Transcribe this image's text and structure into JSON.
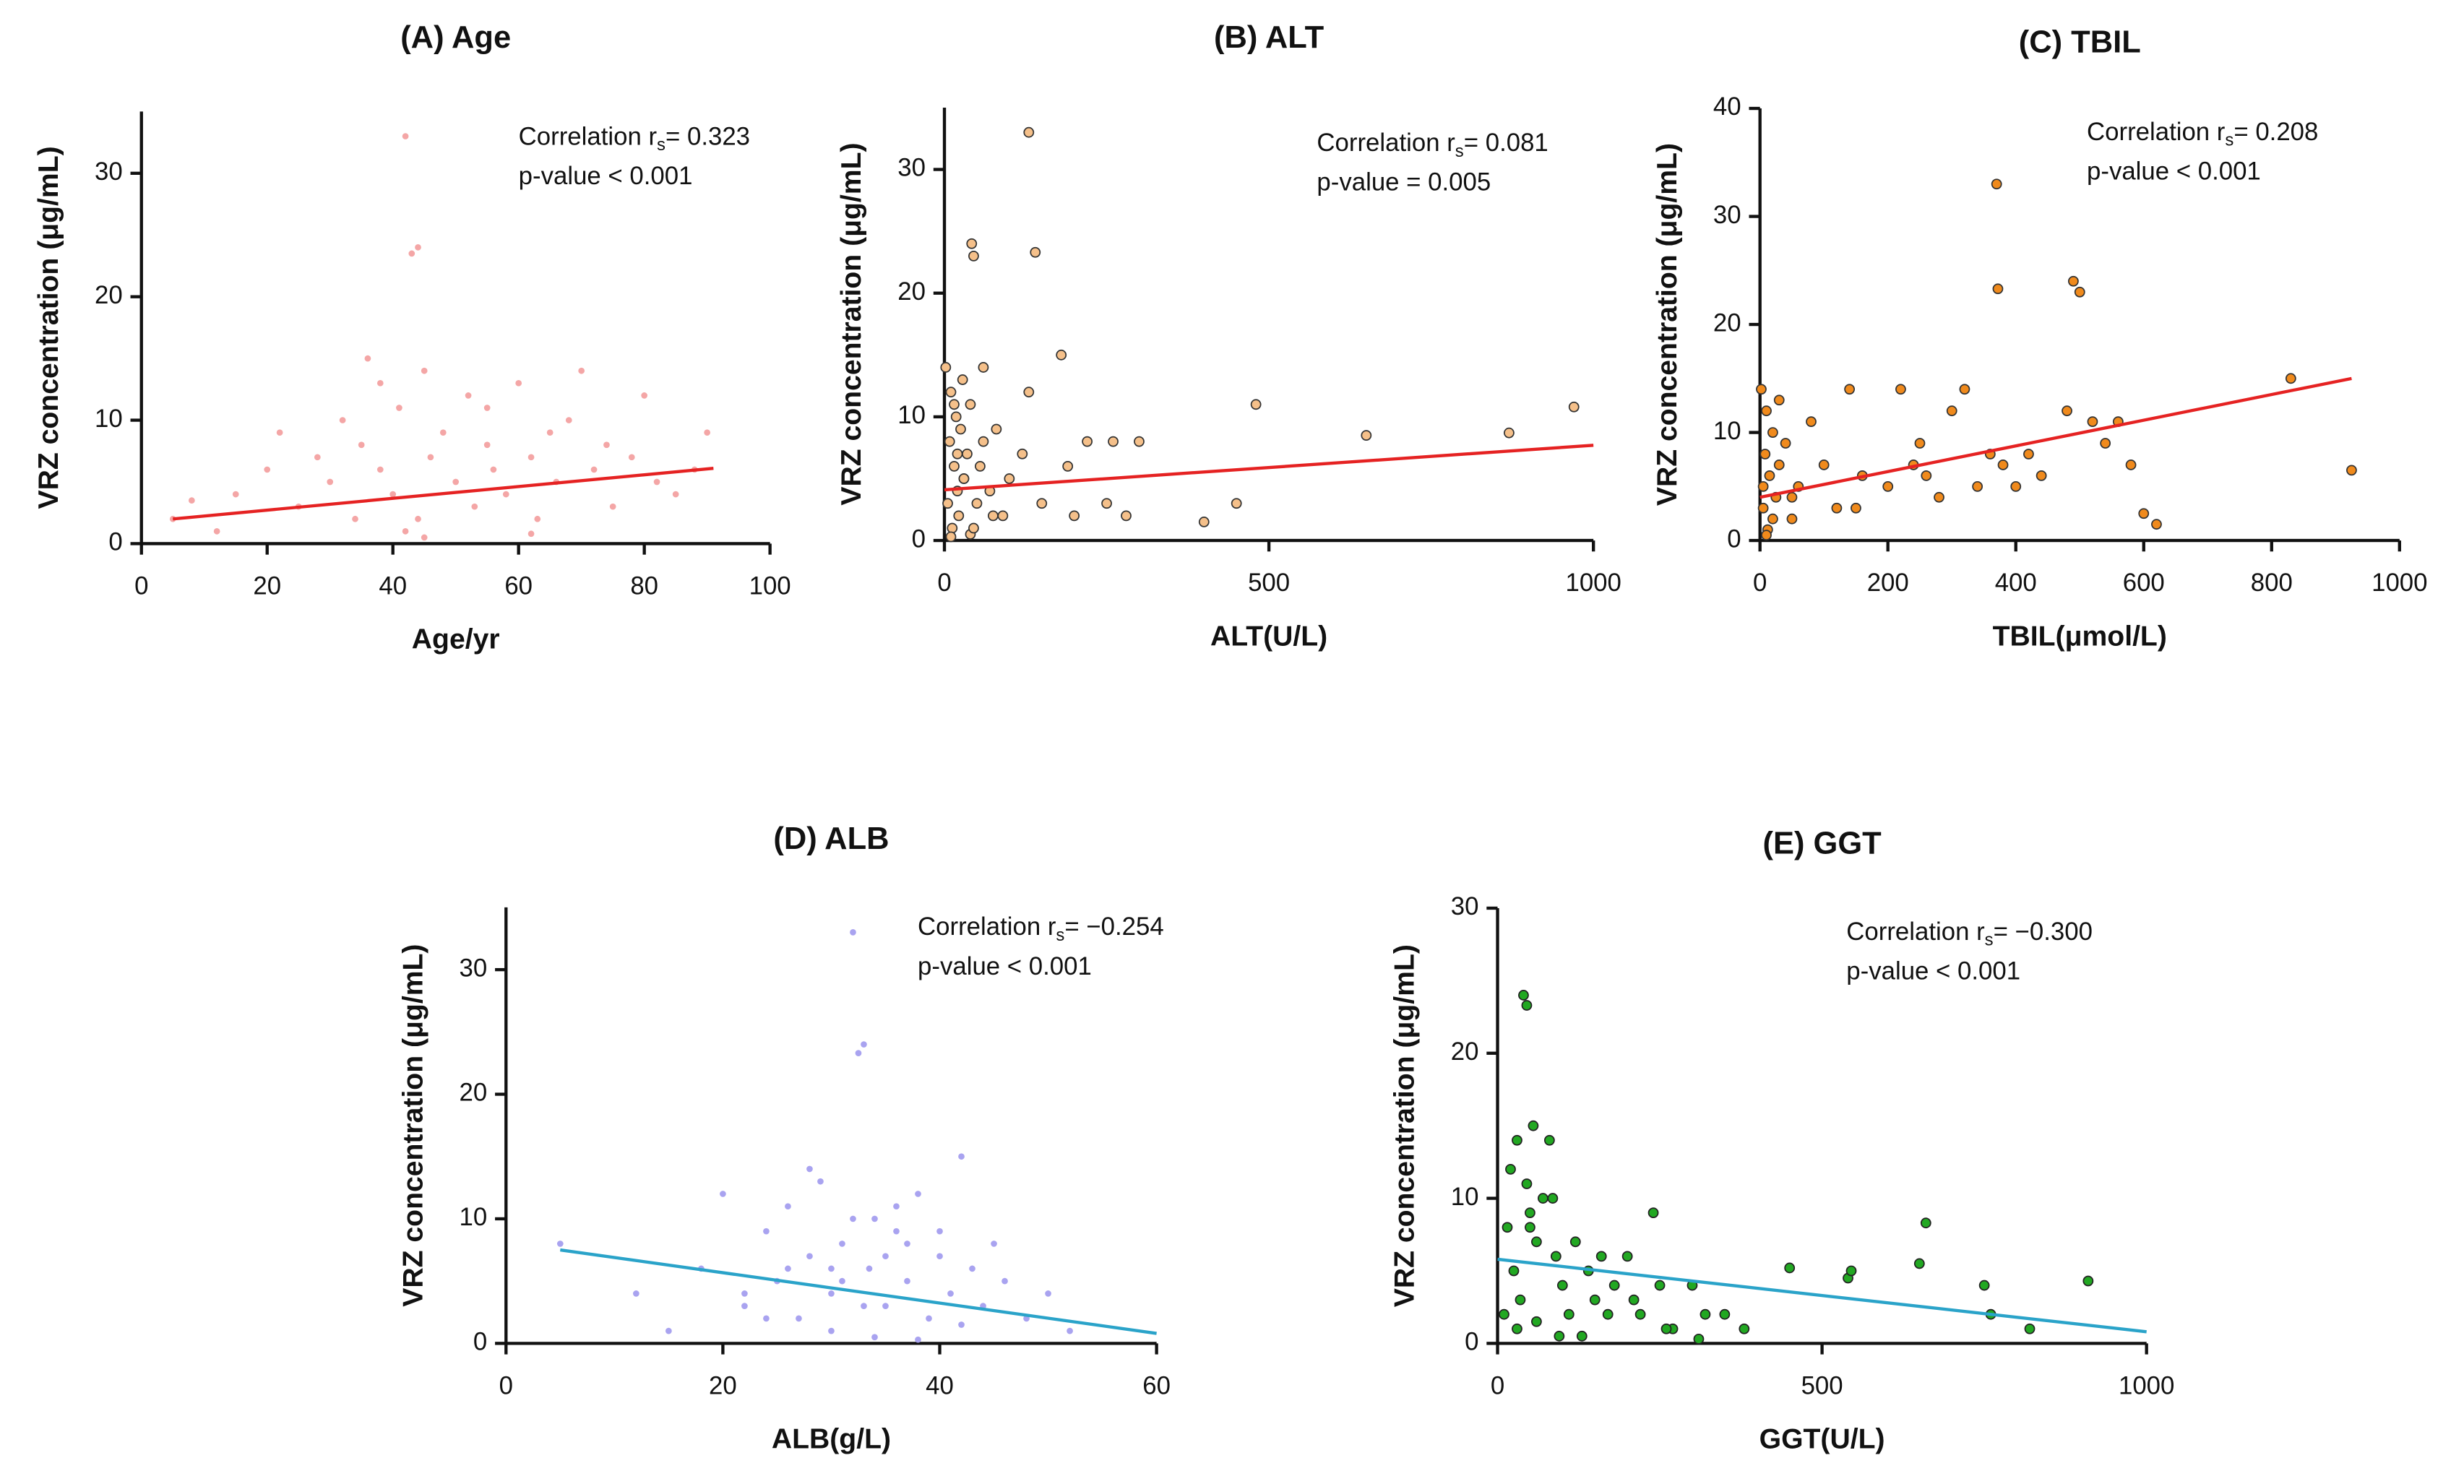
{
  "chart_data": [
    {
      "type": "scatter",
      "title": "(A) Age",
      "x_label": "Age/yr",
      "y_label": "VRZ concentration (μg/mL)",
      "corr_label": "Correlation r",
      "corr_sub": "s",
      "corr_value": "= 0.323",
      "p_text": "p-value < 0.001",
      "color": "#f4a6a6",
      "stroke": "none",
      "fit_color": "#e52222",
      "xlim": [
        0,
        100
      ],
      "ylim": [
        0,
        35
      ],
      "xticks": [
        0,
        20,
        40,
        60,
        80,
        100
      ],
      "yticks": [
        0,
        10,
        20,
        30
      ],
      "x": [
        5,
        8,
        12,
        15,
        20,
        22,
        25,
        28,
        30,
        32,
        34,
        35,
        36,
        38,
        40,
        41,
        42,
        43,
        44,
        45,
        46,
        48,
        50,
        52,
        53,
        55,
        56,
        58,
        60,
        62,
        63,
        65,
        66,
        68,
        70,
        72,
        74,
        75,
        78,
        80,
        82,
        85,
        88,
        90,
        42,
        44,
        45,
        38,
        55,
        62
      ],
      "values": [
        2,
        3.5,
        1,
        4,
        6,
        9,
        3,
        7,
        5,
        10,
        2,
        8,
        15,
        6,
        4,
        11,
        33,
        23.5,
        24,
        14,
        7,
        9,
        5,
        12,
        3,
        8,
        6,
        4,
        13,
        7,
        2,
        9,
        5,
        10,
        14,
        6,
        8,
        3,
        7,
        12,
        5,
        4,
        6,
        9,
        1,
        2,
        0.5,
        13,
        11,
        0.8
      ],
      "fit": {
        "x": [
          5,
          91
        ],
        "y": [
          2,
          6.1
        ]
      }
    },
    {
      "type": "scatter",
      "title": "(B) ALT",
      "x_label": "ALT(U/L)",
      "y_label": "VRZ concentration (μg/mL)",
      "corr_label": "Correlation r",
      "corr_sub": "s",
      "corr_value": "= 0.081",
      "p_text": "p-value = 0.005",
      "color": "#f5c08a",
      "stroke": "#333",
      "fit_color": "#e52222",
      "xlim": [
        0,
        1000
      ],
      "ylim": [
        0,
        35
      ],
      "xticks": [
        0,
        500,
        1000
      ],
      "yticks": [
        0,
        10,
        20,
        30
      ],
      "x": [
        2,
        5,
        8,
        10,
        12,
        15,
        18,
        20,
        22,
        25,
        28,
        30,
        35,
        40,
        42,
        45,
        50,
        55,
        60,
        70,
        80,
        90,
        100,
        120,
        130,
        140,
        150,
        180,
        190,
        200,
        220,
        250,
        260,
        280,
        300,
        400,
        450,
        480,
        650,
        870,
        970,
        40,
        45,
        130,
        60,
        20,
        30,
        10,
        15,
        75
      ],
      "values": [
        14,
        3,
        8,
        12,
        1,
        6,
        10,
        4,
        2,
        9,
        13,
        5,
        7,
        11,
        24,
        23,
        3,
        6,
        8,
        4,
        9,
        2,
        5,
        7,
        33,
        23.3,
        3,
        15,
        6,
        2,
        8,
        3,
        8,
        2,
        8,
        1.5,
        3,
        11,
        8.5,
        8.7,
        10.8,
        0.5,
        1,
        12,
        14,
        7,
        5,
        0.3,
        11,
        2
      ],
      "fit": {
        "x": [
          0,
          1000
        ],
        "y": [
          4.1,
          7.7
        ]
      }
    },
    {
      "type": "scatter",
      "title": "(C) TBIL",
      "x_label": "TBIL(μmol/L)",
      "y_label": "VRZ concentration (μg/mL)",
      "corr_label": "Correlation r",
      "corr_sub": "s",
      "corr_value": "= 0.208",
      "p_text": "p-value < 0.001",
      "color": "#f08a1c",
      "stroke": "#333",
      "fit_color": "#e52222",
      "xlim": [
        0,
        1000
      ],
      "ylim": [
        0,
        40
      ],
      "xticks": [
        0,
        200,
        400,
        600,
        800,
        1000
      ],
      "yticks": [
        0,
        10,
        20,
        30,
        40
      ],
      "x": [
        2,
        5,
        8,
        10,
        12,
        15,
        20,
        25,
        30,
        40,
        50,
        60,
        80,
        100,
        120,
        140,
        160,
        200,
        220,
        240,
        260,
        280,
        300,
        320,
        340,
        360,
        370,
        372,
        380,
        400,
        420,
        440,
        480,
        490,
        500,
        520,
        540,
        560,
        580,
        600,
        620,
        830,
        925,
        10,
        20,
        30,
        5,
        50,
        150,
        250
      ],
      "values": [
        14,
        3,
        8,
        12,
        1,
        6,
        10,
        4,
        7,
        9,
        2,
        5,
        11,
        7,
        3,
        14,
        6,
        5,
        14,
        7,
        6,
        4,
        12,
        14,
        5,
        8,
        33,
        23.3,
        7,
        5,
        8,
        6,
        12,
        24,
        23,
        11,
        9,
        11,
        7,
        2.5,
        1.5,
        15,
        6.5,
        0.5,
        2,
        13,
        5,
        4,
        3,
        9
      ],
      "fit": {
        "x": [
          0,
          925
        ],
        "y": [
          4,
          15
        ]
      }
    },
    {
      "type": "scatter",
      "title": "(D) ALB",
      "x_label": "ALB(g/L)",
      "y_label": "VRZ concentration (μg/mL)",
      "corr_label": "Correlation r",
      "corr_sub": "s",
      "corr_value": "= −0.254",
      "p_text": "p-value < 0.001",
      "color": "#a9a3f0",
      "stroke": "none",
      "fit_color": "#2aa3c9",
      "xlim": [
        0,
        60
      ],
      "ylim": [
        0,
        35
      ],
      "xticks": [
        0,
        20,
        40,
        60
      ],
      "yticks": [
        0,
        10,
        20,
        30
      ],
      "x": [
        5,
        12,
        15,
        18,
        20,
        22,
        24,
        25,
        26,
        27,
        28,
        29,
        30,
        31,
        32,
        32.5,
        33,
        33.5,
        34,
        35,
        36,
        37,
        38,
        39,
        40,
        41,
        42,
        43,
        44,
        45,
        46,
        48,
        50,
        52,
        28,
        30,
        34,
        36,
        38,
        26,
        24,
        32,
        35,
        40,
        22,
        30,
        33,
        37,
        42,
        31
      ],
      "values": [
        8,
        4,
        1,
        6,
        12,
        3,
        9,
        5,
        11,
        2,
        7,
        13,
        4,
        8,
        33,
        23.3,
        24,
        6,
        10,
        3,
        9,
        5,
        12,
        2,
        7,
        4,
        15,
        6,
        3,
        8,
        5,
        2,
        4,
        1,
        14,
        1,
        0.5,
        11,
        0.3,
        6,
        2,
        10,
        7,
        9,
        4,
        6,
        3,
        8,
        1.5,
        5
      ],
      "fit": {
        "x": [
          5,
          60
        ],
        "y": [
          7.5,
          0.8
        ]
      }
    },
    {
      "type": "scatter",
      "title": "(E) GGT",
      "x_label": "GGT(U/L)",
      "y_label": "VRZ concentration (μg/mL)",
      "corr_label": "Correlation r",
      "corr_sub": "s",
      "corr_value": "= −0.300",
      "p_text": "p-value < 0.001",
      "color": "#22a822",
      "stroke": "#222",
      "fit_color": "#2aa3c9",
      "xlim": [
        0,
        1000
      ],
      "ylim": [
        0,
        30
      ],
      "xticks": [
        0,
        500,
        1000
      ],
      "yticks": [
        0,
        10,
        20,
        30
      ],
      "x": [
        10,
        15,
        20,
        25,
        30,
        35,
        40,
        45,
        50,
        55,
        60,
        70,
        80,
        90,
        100,
        110,
        120,
        140,
        150,
        160,
        180,
        200,
        220,
        240,
        250,
        270,
        300,
        320,
        350,
        380,
        450,
        540,
        545,
        650,
        660,
        750,
        760,
        820,
        910,
        45,
        50,
        85,
        95,
        30,
        60,
        130,
        170,
        210,
        260,
        310
      ],
      "values": [
        2,
        8,
        12,
        5,
        14,
        3,
        24,
        23.3,
        9,
        15,
        7,
        10,
        14,
        6,
        4,
        2,
        7,
        5,
        3,
        6,
        4,
        6,
        2,
        9,
        4,
        1,
        4,
        2,
        2,
        1,
        5.2,
        4.5,
        5,
        5.5,
        8.3,
        4,
        2,
        1,
        4.3,
        11,
        8,
        10,
        0.5,
        1,
        1.5,
        0.5,
        2,
        3,
        1,
        0.3
      ],
      "fit": {
        "x": [
          0,
          1000
        ],
        "y": [
          5.8,
          0.8
        ]
      }
    }
  ]
}
